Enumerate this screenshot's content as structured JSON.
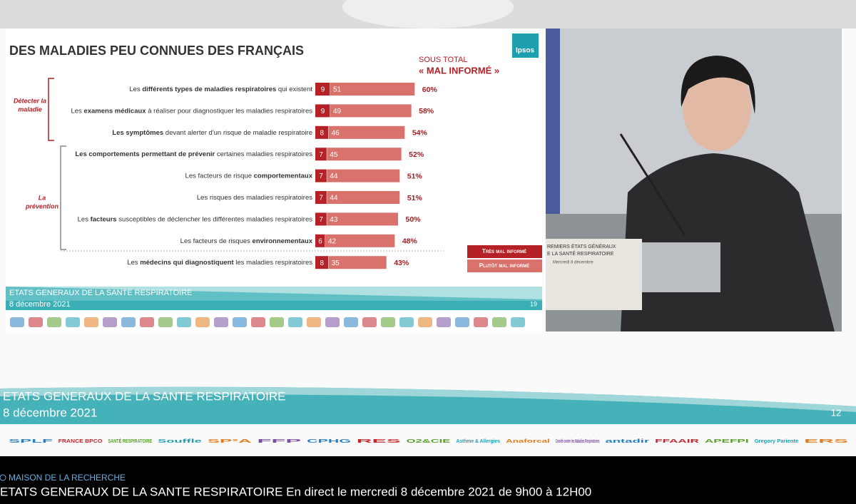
{
  "chart_data": {
    "type": "stacked-barh",
    "title": "DES MALADIES PEU CONNUES DES FRANÇAIS",
    "total_header": [
      "SOUS TOTAL",
      "« MAL INFORMÉ »"
    ],
    "categories": [
      [
        {
          "text": "Les "
        },
        {
          "text": "différents types de maladies respiratoires",
          "bold": true
        },
        {
          "text": " qui existent"
        }
      ],
      [
        {
          "text": "Les "
        },
        {
          "text": "examens médicaux",
          "bold": true
        },
        {
          "text": " à réaliser pour diagnostiquer les maladies respiratoires"
        }
      ],
      [
        {
          "text": "Les symptômes",
          "bold": true
        },
        {
          "text": " devant alerter d'un risque de maladie respiratoire"
        }
      ],
      [
        {
          "text": "Les comportements permettant de prévenir",
          "bold": true
        },
        {
          "text": " certaines maladies respiratoires"
        }
      ],
      [
        {
          "text": "Les facteurs de risque "
        },
        {
          "text": "comportementaux",
          "bold": true
        }
      ],
      [
        {
          "text": "Les risques des maladies respiratoires"
        }
      ],
      [
        {
          "text": "Les "
        },
        {
          "text": "facteurs",
          "bold": true
        },
        {
          "text": " susceptibles de déclencher les différentes maladies respiratoires"
        }
      ],
      [
        {
          "text": "Les facteurs de risques "
        },
        {
          "text": "environnementaux",
          "bold": true
        }
      ],
      [
        {
          "text": "Les "
        },
        {
          "text": "médecins qui diagnostiquent",
          "bold": true
        },
        {
          "text": " les maladies respiratoires"
        }
      ]
    ],
    "series": [
      {
        "name": "Très mal informé",
        "color": "#b42126",
        "values": [
          9,
          9,
          8,
          7,
          7,
          7,
          7,
          6,
          8
        ]
      },
      {
        "name": "Plutôt mal informé",
        "color": "#d9716c",
        "values": [
          51,
          49,
          46,
          45,
          44,
          44,
          43,
          42,
          35
        ]
      }
    ],
    "totals": [
      60,
      58,
      54,
      52,
      51,
      51,
      50,
      48,
      43
    ],
    "total_labels": [
      "60%",
      "58%",
      "54%",
      "52%",
      "51%",
      "51%",
      "50%",
      "48%",
      "43%"
    ],
    "groups": [
      {
        "label": [
          "Détecter la",
          "maladie"
        ],
        "color": "#b42126"
      },
      {
        "label": [
          "La",
          "prévention"
        ],
        "color": "#b42126"
      }
    ]
  },
  "slide": {
    "brand": "Ipsos",
    "footer_title": "ETATS GENERAUX DE LA SANTE RESPIRATOIRE",
    "footer_date": "8 décembre 2021",
    "page": "19"
  },
  "video": {
    "sign": [
      "REMIERS ÉTATS GÉNÉRAUX",
      "E LA SANTÉ RESPIRATOIRE",
      "Mercredi 8 décembre"
    ]
  },
  "banner": {
    "title": "ETATS GENERAUX DE LA SANTE RESPIRATOIRE",
    "date": "8 décembre 2021",
    "page": "12",
    "logos": [
      "SPLF",
      "FRANCE BPCO",
      "SANTÉ RESPIRATOIRE",
      "Souffle",
      "SP²A",
      "FFP",
      "CPHG",
      "RES",
      "O2&CIE",
      "Asthme & Allergies",
      "Anaforcal",
      "Comité contre les Maladies Respiratoires",
      "antadir",
      "FFAAIR",
      "APEFPI",
      "Gregory Pariente",
      "ERS"
    ]
  },
  "stream": {
    "location": "MAISON DE LA RECHERCHE",
    "caption": "ETATS GENERAUX DE LA SANTE RESPIRATOIRE En direct le mercredi 8 décembre 2021 de 9h00 à 12H00"
  }
}
